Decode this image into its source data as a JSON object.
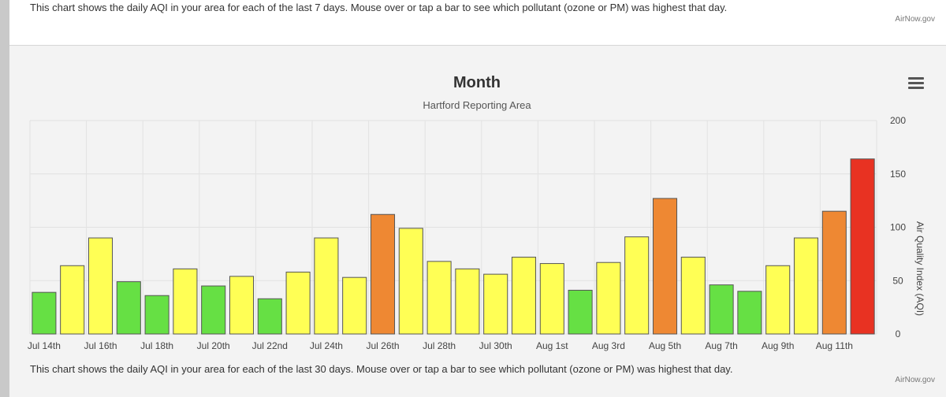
{
  "top_panel": {
    "note": "This chart shows the daily AQI in your area for each of the last 7 days. Mouse over or tap a bar to see which pollutant (ozone or PM) was highest that day.",
    "credit": "AirNow.gov"
  },
  "bottom_panel": {
    "note": "This chart shows the daily AQI in your area for each of the last 30 days. Mouse over or tap a bar to see which pollutant (ozone or PM) was highest that day.",
    "credit": "AirNow.gov"
  },
  "menu": {
    "icon": "hamburger-menu-icon"
  },
  "colors": {
    "good": "#66e044",
    "moderate": "#ffff55",
    "usg": "#ee8833",
    "unhealthy": "#e83222",
    "bar_border": "#555555",
    "grid": "#e2e2e2",
    "background": "#f3f3f3"
  },
  "chart_data": {
    "type": "bar",
    "title": "Month",
    "subtitle": "Hartford Reporting Area",
    "ylabel": "Air Quality Index (AQI)",
    "ylim": [
      0,
      200
    ],
    "yticks": [
      0,
      50,
      100,
      150,
      200
    ],
    "y_axis_side": "right",
    "grid": true,
    "legend": "none",
    "x_tick_labels": [
      "Jul 14th",
      "Jul 16th",
      "Jul 18th",
      "Jul 20th",
      "Jul 22nd",
      "Jul 24th",
      "Jul 26th",
      "Jul 28th",
      "Jul 30th",
      "Aug 1st",
      "Aug 3rd",
      "Aug 5th",
      "Aug 7th",
      "Aug 9th",
      "Aug 11th"
    ],
    "values": [
      39,
      64,
      90,
      49,
      36,
      61,
      45,
      54,
      33,
      58,
      90,
      53,
      112,
      99,
      68,
      61,
      56,
      72,
      66,
      41,
      67,
      91,
      127,
      72,
      46,
      40,
      64,
      90,
      115,
      164
    ],
    "categories_by_bar": [
      "good",
      "moderate",
      "moderate",
      "good",
      "good",
      "moderate",
      "good",
      "moderate",
      "good",
      "moderate",
      "moderate",
      "moderate",
      "usg",
      "moderate",
      "moderate",
      "moderate",
      "moderate",
      "moderate",
      "moderate",
      "good",
      "moderate",
      "moderate",
      "usg",
      "moderate",
      "good",
      "good",
      "moderate",
      "moderate",
      "usg",
      "unhealthy"
    ]
  }
}
